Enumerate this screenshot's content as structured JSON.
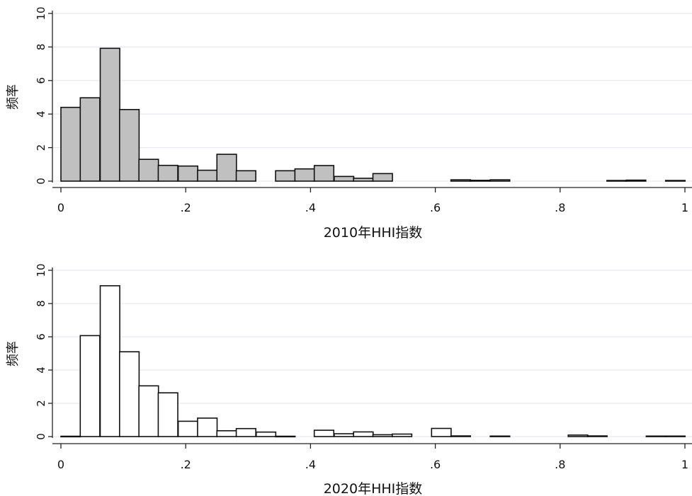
{
  "chart_data": [
    {
      "type": "bar",
      "xlabel": "2010年HHI指数",
      "ylabel": "频率",
      "xlim": [
        0,
        1
      ],
      "ylim": [
        0,
        10
      ],
      "xticks": [
        "0",
        ".2",
        ".4",
        ".6",
        ".8",
        "1"
      ],
      "yticks": [
        "0",
        "2",
        "4",
        "6",
        "8",
        "10"
      ],
      "grid": true,
      "bar_color": "#c0c0c0",
      "bin_width": 0.0313,
      "bins": [
        {
          "x0": 0.0,
          "value": 4.4
        },
        {
          "x0": 0.031,
          "value": 4.97
        },
        {
          "x0": 0.063,
          "value": 7.92
        },
        {
          "x0": 0.094,
          "value": 4.27
        },
        {
          "x0": 0.125,
          "value": 1.3
        },
        {
          "x0": 0.156,
          "value": 0.94
        },
        {
          "x0": 0.188,
          "value": 0.9
        },
        {
          "x0": 0.219,
          "value": 0.65
        },
        {
          "x0": 0.25,
          "value": 1.6
        },
        {
          "x0": 0.281,
          "value": 0.62
        },
        {
          "x0": 0.344,
          "value": 0.62
        },
        {
          "x0": 0.375,
          "value": 0.73
        },
        {
          "x0": 0.406,
          "value": 0.93
        },
        {
          "x0": 0.438,
          "value": 0.28
        },
        {
          "x0": 0.469,
          "value": 0.17
        },
        {
          "x0": 0.5,
          "value": 0.45
        },
        {
          "x0": 0.625,
          "value": 0.08
        },
        {
          "x0": 0.656,
          "value": 0.05
        },
        {
          "x0": 0.688,
          "value": 0.08
        },
        {
          "x0": 0.875,
          "value": 0.04
        },
        {
          "x0": 0.906,
          "value": 0.06
        },
        {
          "x0": 0.969,
          "value": 0.04
        }
      ]
    },
    {
      "type": "bar",
      "xlabel": "2020年HHI指数",
      "ylabel": "频率",
      "xlim": [
        0,
        1
      ],
      "ylim": [
        0,
        10
      ],
      "xticks": [
        "0",
        ".2",
        ".4",
        ".6",
        ".8",
        "1"
      ],
      "yticks": [
        "0",
        "2",
        "4",
        "6",
        "8",
        "10"
      ],
      "grid": true,
      "bar_color": "#ffffff",
      "bin_width": 0.0313,
      "bins": [
        {
          "x0": 0.0,
          "value": 0.02
        },
        {
          "x0": 0.031,
          "value": 6.07
        },
        {
          "x0": 0.063,
          "value": 9.07
        },
        {
          "x0": 0.094,
          "value": 5.1
        },
        {
          "x0": 0.125,
          "value": 3.05
        },
        {
          "x0": 0.156,
          "value": 2.63
        },
        {
          "x0": 0.188,
          "value": 0.92
        },
        {
          "x0": 0.219,
          "value": 1.11
        },
        {
          "x0": 0.25,
          "value": 0.35
        },
        {
          "x0": 0.281,
          "value": 0.48
        },
        {
          "x0": 0.313,
          "value": 0.27
        },
        {
          "x0": 0.344,
          "value": 0.02
        },
        {
          "x0": 0.406,
          "value": 0.38
        },
        {
          "x0": 0.438,
          "value": 0.17
        },
        {
          "x0": 0.469,
          "value": 0.28
        },
        {
          "x0": 0.5,
          "value": 0.11
        },
        {
          "x0": 0.531,
          "value": 0.15
        },
        {
          "x0": 0.594,
          "value": 0.49
        },
        {
          "x0": 0.625,
          "value": 0.04
        },
        {
          "x0": 0.688,
          "value": 0.03
        },
        {
          "x0": 0.813,
          "value": 0.09
        },
        {
          "x0": 0.844,
          "value": 0.04
        },
        {
          "x0": 0.938,
          "value": 0.03
        },
        {
          "x0": 0.969,
          "value": 0.03
        }
      ]
    }
  ]
}
